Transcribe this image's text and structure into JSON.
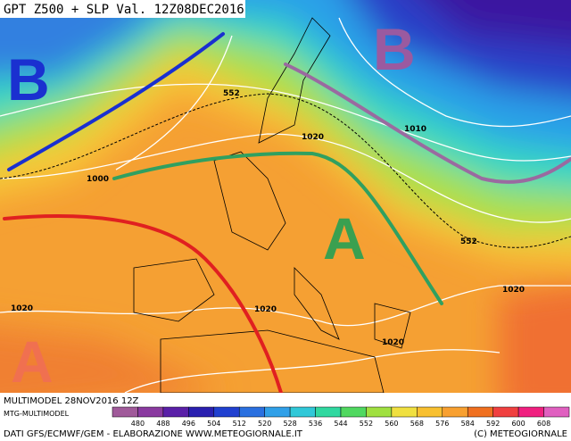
{
  "header": {
    "title": "GPT Z500 + SLP Val. 12Z08DEC2016"
  },
  "pressure_centers": [
    "B",
    "B",
    "A",
    "A"
  ],
  "contour_labels": [
    "552",
    "1000",
    "1020",
    "1010",
    "552",
    "1020",
    "1020",
    "1020",
    "1020"
  ],
  "footer": {
    "run": "MULTIMODEL 28NOV2016 12Z",
    "model": "MTG-MULTIMODEL",
    "source": "DATI GFS/ECMWF/GEM - ELABORAZIONE WWW.METEOGIORNALE.IT",
    "copyright": "(C) METEOGIORNALE"
  },
  "colorbar": {
    "ticks": [
      480,
      488,
      496,
      504,
      512,
      520,
      528,
      536,
      544,
      552,
      560,
      568,
      576,
      584,
      592,
      600,
      608
    ],
    "colors": [
      "#a05a9a",
      "#8a3aa0",
      "#5a20a8",
      "#2a20b0",
      "#2040d0",
      "#2a70e0",
      "#30a0e8",
      "#30c8d8",
      "#30d8a0",
      "#50d860",
      "#a0e040",
      "#f0e040",
      "#f8c030",
      "#f8a030",
      "#f07020",
      "#f04040",
      "#f02080",
      "#e060c0"
    ]
  }
}
